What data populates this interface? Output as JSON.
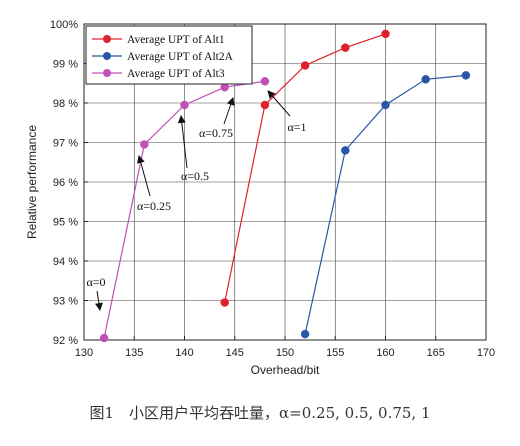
{
  "chart_data": {
    "type": "line",
    "title": "",
    "xlabel": "Overhead/bit",
    "ylabel": "Relative performance",
    "xlim": [
      130,
      170
    ],
    "ylim": [
      92,
      100
    ],
    "x_ticks": [
      130,
      135,
      140,
      145,
      150,
      155,
      160,
      165,
      170
    ],
    "y_ticks": [
      92,
      93,
      94,
      95,
      96,
      97,
      98,
      99,
      100
    ],
    "y_tick_labels": [
      "92 %",
      "93 %",
      "94 %",
      "95 %",
      "96 %",
      "97 %",
      "98 %",
      "99 %",
      "100%"
    ],
    "grid": true,
    "legend_position": "top-left",
    "series": [
      {
        "name": "Average UPT of Alt1",
        "color": "#e0202a",
        "x": [
          144,
          148,
          152,
          156,
          160
        ],
        "y": [
          92.95,
          97.95,
          98.95,
          99.4,
          99.75
        ]
      },
      {
        "name": "Average UPT of Alt2A",
        "color": "#2a56a8",
        "x": [
          152,
          156,
          160,
          164,
          168
        ],
        "y": [
          92.15,
          96.8,
          97.95,
          98.6,
          98.7
        ]
      },
      {
        "name": "Average UPT of Alt3",
        "color": "#c050b8",
        "x": [
          132,
          136,
          140,
          144,
          148
        ],
        "y": [
          92.05,
          96.95,
          97.95,
          98.4,
          98.55
        ]
      }
    ],
    "annotations": [
      {
        "text": "α=0"
      },
      {
        "text": "α=0.25"
      },
      {
        "text": "α=0.5"
      },
      {
        "text": "α=0.75"
      },
      {
        "text": "α=1"
      }
    ]
  },
  "caption": "图1　小区用户平均吞吐量，α=0.25, 0.5, 0.75, 1"
}
